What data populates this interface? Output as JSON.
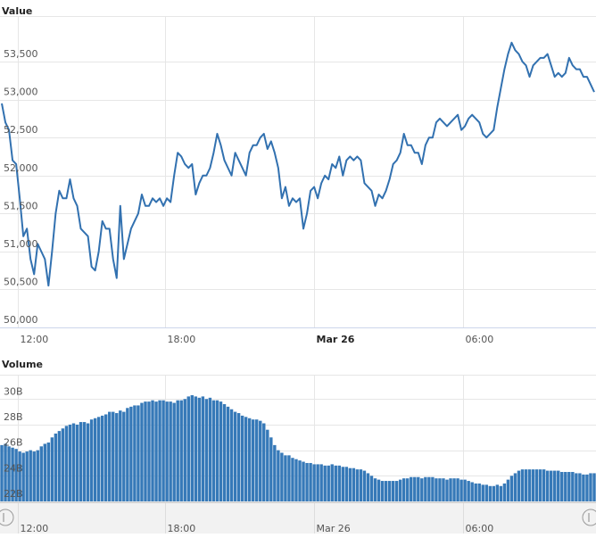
{
  "chart_data": [
    {
      "type": "line",
      "y_label": "Value",
      "color": "#3271b0",
      "grid": true,
      "ylim": [
        50000,
        54100
      ],
      "yticks": [
        {
          "value": 50000,
          "label": "50,000"
        },
        {
          "value": 50500,
          "label": "50,500"
        },
        {
          "value": 51000,
          "label": "51,000"
        },
        {
          "value": 51500,
          "label": "51,500"
        },
        {
          "value": 52000,
          "label": "52,000"
        },
        {
          "value": 52500,
          "label": "52,500"
        },
        {
          "value": 53000,
          "label": "53,000"
        },
        {
          "value": 53500,
          "label": "53,500"
        }
      ],
      "xlim": [
        0,
        166
      ],
      "xticks": [
        {
          "value": 4.5,
          "label": "12:00"
        },
        {
          "value": 45.5,
          "label": "18:00"
        },
        {
          "value": 87,
          "label": "Mar 26",
          "bold": true
        },
        {
          "value": 128.5,
          "label": "06:00"
        }
      ],
      "values": [
        52950,
        52700,
        52600,
        52200,
        52150,
        51700,
        51200,
        51300,
        50900,
        50700,
        51100,
        51000,
        50900,
        50550,
        51000,
        51500,
        51800,
        51700,
        51700,
        51950,
        51700,
        51600,
        51300,
        51250,
        51200,
        50800,
        50750,
        51000,
        51400,
        51300,
        51300,
        50900,
        50650,
        51600,
        50900,
        51100,
        51300,
        51400,
        51500,
        51750,
        51600,
        51600,
        51700,
        51650,
        51700,
        51600,
        51700,
        51650,
        52000,
        52300,
        52250,
        52150,
        52100,
        52150,
        51750,
        51900,
        52000,
        52000,
        52100,
        52300,
        52550,
        52400,
        52200,
        52100,
        52000,
        52300,
        52200,
        52100,
        52000,
        52300,
        52400,
        52400,
        52500,
        52550,
        52350,
        52450,
        52300,
        52100,
        51700,
        51850,
        51600,
        51700,
        51650,
        51700,
        51300,
        51500,
        51800,
        51850,
        51700,
        51900,
        52000,
        51950,
        52150,
        52100,
        52250,
        52000,
        52200,
        52250,
        52200,
        52250,
        52200,
        51900,
        51850,
        51800,
        51600,
        51750,
        51700,
        51800,
        51950,
        52150,
        52200,
        52300,
        52550,
        52400,
        52400,
        52300,
        52300,
        52150,
        52400,
        52500,
        52500,
        52700,
        52750,
        52700,
        52650,
        52700,
        52750,
        52800,
        52600,
        52650,
        52750,
        52800,
        52750,
        52700,
        52550,
        52500,
        52550,
        52600,
        52900,
        53150,
        53400,
        53600,
        53750,
        53650,
        53600,
        53500,
        53450,
        53300,
        53450,
        53500,
        53550,
        53550,
        53600,
        53450,
        53300,
        53350,
        53300,
        53350,
        53550,
        53450,
        53400,
        53400,
        53300,
        53300,
        53200,
        53100
      ]
    },
    {
      "type": "bar",
      "y_label": "Volume",
      "color": "#3679b8",
      "grid": true,
      "ylim": [
        22,
        31.9
      ],
      "yticks": [
        {
          "value": 22,
          "label": "22B"
        },
        {
          "value": 24,
          "label": "24B"
        },
        {
          "value": 26,
          "label": "26B"
        },
        {
          "value": 28,
          "label": "28B"
        },
        {
          "value": 30,
          "label": "30B"
        }
      ],
      "xlim": [
        0,
        166
      ],
      "xticks": [
        {
          "value": 4.5,
          "label": "12:00"
        },
        {
          "value": 45.5,
          "label": "18:00"
        },
        {
          "value": 87,
          "label": "Mar 26"
        },
        {
          "value": 128.5,
          "label": "06:00"
        }
      ],
      "values": [
        26.4,
        26.5,
        26.3,
        26.2,
        26.1,
        25.9,
        25.8,
        25.9,
        26.0,
        25.9,
        26.0,
        26.3,
        26.5,
        26.6,
        27.0,
        27.3,
        27.5,
        27.7,
        27.9,
        28.0,
        28.1,
        28.0,
        28.2,
        28.2,
        28.1,
        28.4,
        28.5,
        28.6,
        28.7,
        28.8,
        29.0,
        29.0,
        28.9,
        29.1,
        29.0,
        29.3,
        29.4,
        29.5,
        29.5,
        29.7,
        29.8,
        29.8,
        29.9,
        29.8,
        29.9,
        29.9,
        29.8,
        29.8,
        29.7,
        29.9,
        29.9,
        30.0,
        30.2,
        30.3,
        30.2,
        30.1,
        30.2,
        30.0,
        30.1,
        29.9,
        29.9,
        29.8,
        29.6,
        29.4,
        29.2,
        29.0,
        28.9,
        28.7,
        28.6,
        28.5,
        28.4,
        28.4,
        28.3,
        28.1,
        27.6,
        27.0,
        26.4,
        26.0,
        25.8,
        25.6,
        25.6,
        25.4,
        25.3,
        25.2,
        25.1,
        25.0,
        25.0,
        24.9,
        24.9,
        24.9,
        24.8,
        24.8,
        24.9,
        24.8,
        24.8,
        24.7,
        24.7,
        24.6,
        24.6,
        24.5,
        24.5,
        24.4,
        24.2,
        24.0,
        23.8,
        23.7,
        23.6,
        23.6,
        23.6,
        23.6,
        23.6,
        23.7,
        23.8,
        23.8,
        23.9,
        23.9,
        23.9,
        23.8,
        23.9,
        23.9,
        23.9,
        23.8,
        23.8,
        23.8,
        23.7,
        23.8,
        23.8,
        23.8,
        23.7,
        23.7,
        23.6,
        23.5,
        23.4,
        23.4,
        23.3,
        23.3,
        23.2,
        23.2,
        23.3,
        23.2,
        23.4,
        23.7,
        24.0,
        24.2,
        24.4,
        24.5,
        24.5,
        24.5,
        24.5,
        24.5,
        24.5,
        24.5,
        24.4,
        24.4,
        24.4,
        24.4,
        24.3,
        24.3,
        24.3,
        24.3,
        24.2,
        24.2,
        24.1,
        24.1,
        24.2,
        24.2
      ]
    }
  ]
}
